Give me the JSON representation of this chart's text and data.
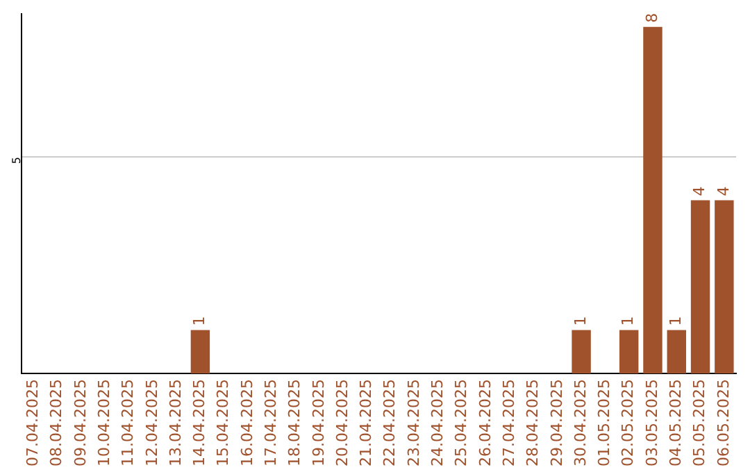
{
  "chart_data": {
    "type": "bar",
    "categories": [
      "07.04.2025",
      "08.04.2025",
      "09.04.2025",
      "10.04.2025",
      "11.04.2025",
      "12.04.2025",
      "13.04.2025",
      "14.04.2025",
      "15.04.2025",
      "16.04.2025",
      "17.04.2025",
      "18.04.2025",
      "19.04.2025",
      "20.04.2025",
      "21.04.2025",
      "22.04.2025",
      "23.04.2025",
      "24.04.2025",
      "25.04.2025",
      "26.04.2025",
      "27.04.2025",
      "28.04.2025",
      "29.04.2025",
      "30.04.2025",
      "01.05.2025",
      "02.05.2025",
      "03.05.2025",
      "04.05.2025",
      "05.05.2025",
      "06.05.2025"
    ],
    "values": [
      0,
      0,
      0,
      0,
      0,
      0,
      0,
      1,
      0,
      0,
      0,
      0,
      0,
      0,
      0,
      0,
      0,
      0,
      0,
      0,
      0,
      0,
      0,
      1,
      0,
      1,
      8,
      1,
      4,
      4
    ],
    "value_labels": [
      null,
      null,
      null,
      null,
      null,
      null,
      null,
      "1",
      null,
      null,
      null,
      null,
      null,
      null,
      null,
      null,
      null,
      null,
      null,
      null,
      null,
      null,
      null,
      "1",
      null,
      "1",
      "8",
      "1",
      "4",
      "4"
    ],
    "color": "#a0522d",
    "ylim": [
      0,
      8.3
    ],
    "yticks": [
      5
    ],
    "grid": "y",
    "legend": false
  }
}
